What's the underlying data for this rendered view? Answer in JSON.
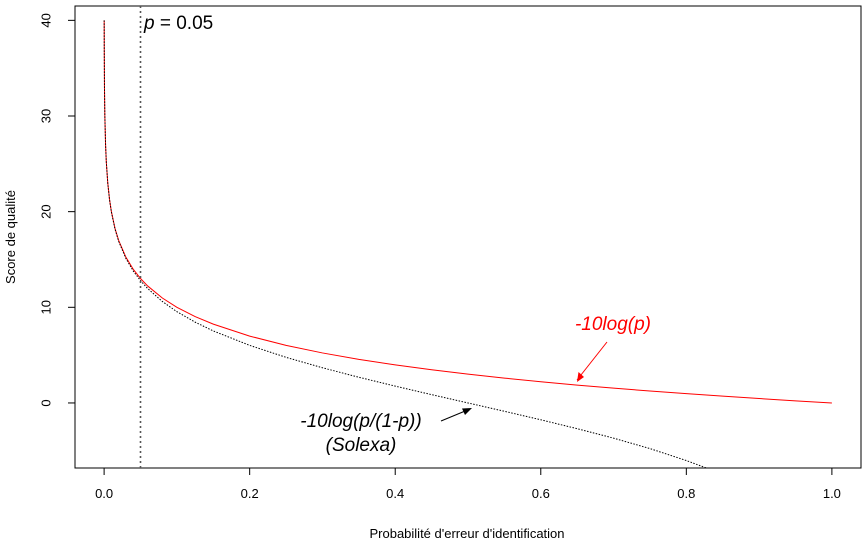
{
  "chart_data": {
    "type": "line",
    "xlabel": "Probabilité d'erreur d'identification",
    "ylabel": "Score de qualité",
    "xlim": [
      -0.04,
      1.04
    ],
    "ylim": [
      -6.8,
      41.5
    ],
    "x_ticks": [
      0.0,
      0.2,
      0.4,
      0.6,
      0.8,
      1.0
    ],
    "x_tick_labels": [
      "0.0",
      "0.2",
      "0.4",
      "0.6",
      "0.8",
      "1.0"
    ],
    "y_ticks": [
      0,
      10,
      20,
      30,
      40
    ],
    "y_tick_labels": [
      "0",
      "10",
      "20",
      "30",
      "40"
    ],
    "grid": false,
    "series": [
      {
        "label": "-10log(p)",
        "color": "#ff0000",
        "style": "solid",
        "x": [
          0.0001,
          0.0002,
          0.0005,
          0.001,
          0.002,
          0.003,
          0.005,
          0.0075,
          0.01,
          0.015,
          0.02,
          0.03,
          0.04,
          0.05,
          0.06,
          0.08,
          0.1,
          0.125,
          0.15,
          0.2,
          0.25,
          0.3,
          0.35,
          0.4,
          0.45,
          0.5,
          0.55,
          0.6,
          0.65,
          0.7,
          0.75,
          0.8,
          0.85,
          0.9,
          0.95,
          1.0
        ],
        "y": [
          40.0,
          36.99,
          33.01,
          30.0,
          26.99,
          25.23,
          23.01,
          21.25,
          20.0,
          18.24,
          16.99,
          15.23,
          13.98,
          13.01,
          12.22,
          10.97,
          10.0,
          9.03,
          8.24,
          6.99,
          6.02,
          5.23,
          4.56,
          3.98,
          3.47,
          3.01,
          2.6,
          2.22,
          1.87,
          1.55,
          1.25,
          0.97,
          0.71,
          0.46,
          0.22,
          0.0
        ]
      },
      {
        "label": "-10log(p/(1-p))",
        "color": "#000000",
        "style": "dotted",
        "x": [
          0.0001,
          0.0002,
          0.0005,
          0.001,
          0.002,
          0.003,
          0.005,
          0.0075,
          0.01,
          0.015,
          0.02,
          0.03,
          0.04,
          0.05,
          0.06,
          0.08,
          0.1,
          0.125,
          0.15,
          0.2,
          0.25,
          0.3,
          0.35,
          0.4,
          0.45,
          0.5,
          0.55,
          0.6,
          0.65,
          0.7,
          0.75,
          0.8,
          0.8275
        ],
        "y": [
          40.0,
          36.99,
          33.01,
          30.0,
          26.98,
          25.22,
          22.99,
          21.22,
          19.96,
          18.17,
          16.9,
          15.1,
          13.8,
          12.79,
          11.95,
          10.61,
          9.54,
          8.45,
          7.53,
          6.02,
          4.77,
          3.68,
          2.69,
          1.76,
          0.87,
          0.0,
          -0.87,
          -1.76,
          -2.69,
          -3.68,
          -4.77,
          -6.02,
          -6.8
        ]
      }
    ],
    "vline": {
      "x": 0.05,
      "style": "dotted",
      "color": "#555555"
    },
    "annotations": {
      "p_label_var": "p",
      "p_label_rest": " = 0.05",
      "red_label": "-10log(p)",
      "black_label_1": "-10log(p/(1-p))",
      "black_label_2": "(Solexa)"
    }
  }
}
